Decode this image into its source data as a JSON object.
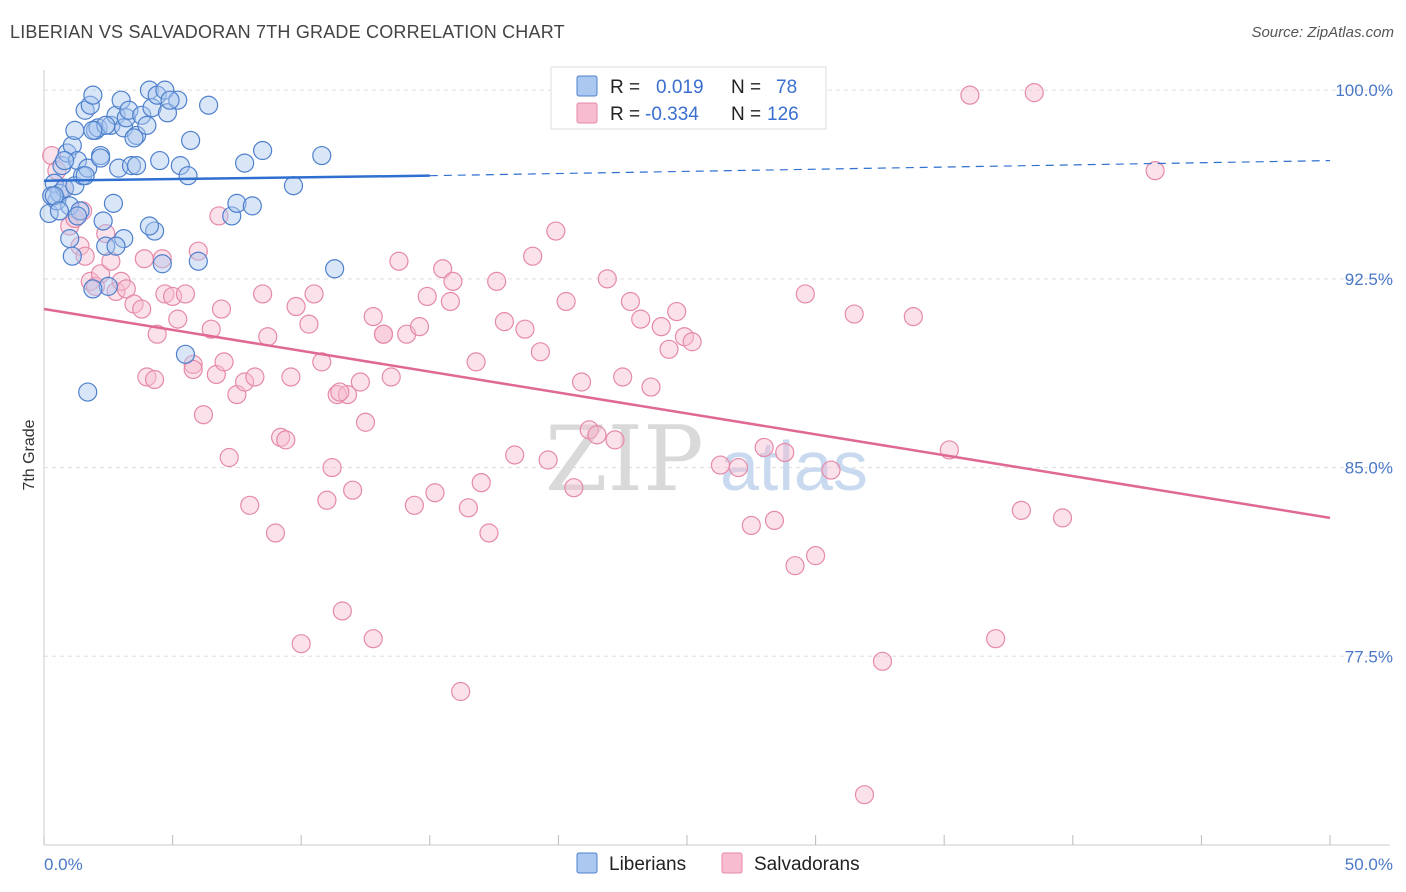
{
  "header": {
    "title": "LIBERIAN VS SALVADORAN 7TH GRADE CORRELATION CHART",
    "source": "Source: ZipAtlas.com"
  },
  "watermark": {
    "part1": "ZIP",
    "part2": "atlas"
  },
  "colors": {
    "liberians_fill": "#aac8f0",
    "liberians_stroke": "#4f80cc",
    "liberians_line": "#2f6fd0",
    "salvadorans_fill": "#f7bcd0",
    "salvadorans_stroke": "#e58aa8",
    "salvadorans_line": "#e06894",
    "grid": "#dddddd"
  },
  "legend": {
    "rows": [
      {
        "r_label": "R =",
        "r_value": "0.019",
        "n_label": "N =",
        "n_value": "78"
      },
      {
        "r_label": "R =",
        "r_value": "-0.334",
        "n_label": "N =",
        "n_value": "126"
      }
    ]
  },
  "chart_data": {
    "type": "scatter",
    "xlabel": "",
    "ylabel": "7th Grade",
    "xlim": [
      0,
      50
    ],
    "ylim": [
      70,
      100.8
    ],
    "x_tick_labels": [
      "0.0%",
      "50.0%"
    ],
    "y_ticks": [
      {
        "value": 100.0,
        "label": "100.0%"
      },
      {
        "value": 92.5,
        "label": "92.5%"
      },
      {
        "value": 85.0,
        "label": "85.0%"
      },
      {
        "value": 77.5,
        "label": "77.5%"
      }
    ],
    "grid": true,
    "legend_position": "top-center",
    "series": [
      {
        "name": "Liberians",
        "trend": {
          "x_start": 0,
          "y_start": 96.4,
          "x_solid_end": 15,
          "y_solid_end": 96.6,
          "x_end": 50,
          "y_end": 97.2
        },
        "points": [
          [
            0.2,
            95.1
          ],
          [
            0.4,
            96.3
          ],
          [
            0.5,
            95.6
          ],
          [
            0.6,
            95.9
          ],
          [
            0.7,
            97.0
          ],
          [
            0.8,
            96.1
          ],
          [
            0.9,
            97.5
          ],
          [
            1.0,
            95.4
          ],
          [
            1.1,
            97.8
          ],
          [
            1.2,
            96.2
          ],
          [
            1.3,
            97.2
          ],
          [
            1.4,
            95.2
          ],
          [
            1.5,
            96.6
          ],
          [
            1.6,
            99.2
          ],
          [
            1.7,
            96.9
          ],
          [
            1.8,
            99.4
          ],
          [
            1.9,
            99.8
          ],
          [
            2.0,
            98.4
          ],
          [
            2.1,
            98.5
          ],
          [
            2.2,
            97.4
          ],
          [
            2.3,
            94.8
          ],
          [
            2.4,
            93.8
          ],
          [
            2.5,
            92.2
          ],
          [
            2.6,
            98.6
          ],
          [
            2.7,
            95.5
          ],
          [
            2.8,
            99.0
          ],
          [
            2.9,
            96.9
          ],
          [
            3.0,
            99.6
          ],
          [
            3.1,
            98.5
          ],
          [
            3.2,
            98.9
          ],
          [
            3.3,
            99.2
          ],
          [
            3.4,
            97.0
          ],
          [
            3.6,
            98.2
          ],
          [
            3.8,
            99.0
          ],
          [
            4.0,
            98.6
          ],
          [
            4.1,
            100.0
          ],
          [
            4.2,
            99.3
          ],
          [
            4.3,
            94.4
          ],
          [
            4.4,
            99.8
          ],
          [
            4.5,
            97.2
          ],
          [
            4.6,
            93.1
          ],
          [
            4.7,
            100.0
          ],
          [
            4.8,
            99.1
          ],
          [
            5.2,
            99.6
          ],
          [
            5.3,
            97.0
          ],
          [
            5.5,
            89.5
          ],
          [
            5.6,
            96.6
          ],
          [
            5.7,
            98.0
          ],
          [
            6.0,
            93.2
          ],
          [
            6.4,
            99.4
          ],
          [
            7.3,
            95.0
          ],
          [
            7.5,
            95.5
          ],
          [
            7.8,
            97.1
          ],
          [
            8.1,
            95.4
          ],
          [
            8.5,
            97.6
          ],
          [
            9.7,
            96.2
          ],
          [
            10.8,
            97.4
          ],
          [
            11.3,
            92.9
          ],
          [
            0.3,
            95.8
          ],
          [
            0.8,
            97.2
          ],
          [
            1.0,
            94.1
          ],
          [
            1.2,
            98.4
          ],
          [
            1.6,
            96.6
          ],
          [
            1.9,
            92.1
          ],
          [
            2.4,
            98.6
          ],
          [
            3.1,
            94.1
          ],
          [
            3.5,
            98.1
          ],
          [
            4.9,
            99.6
          ],
          [
            1.1,
            93.4
          ],
          [
            1.9,
            98.4
          ],
          [
            0.4,
            95.8
          ],
          [
            0.6,
            95.2
          ],
          [
            1.7,
            88.0
          ],
          [
            2.8,
            93.8
          ],
          [
            3.6,
            97.0
          ],
          [
            4.1,
            94.6
          ],
          [
            2.2,
            97.3
          ],
          [
            1.3,
            95.0
          ]
        ]
      },
      {
        "name": "Salvadorans",
        "trend": {
          "x_start": 0,
          "y_start": 91.3,
          "x_end": 50,
          "y_end": 83.0
        },
        "points": [
          [
            0.3,
            97.4
          ],
          [
            0.5,
            96.8
          ],
          [
            1.0,
            94.6
          ],
          [
            1.2,
            94.9
          ],
          [
            1.4,
            93.8
          ],
          [
            1.6,
            93.4
          ],
          [
            1.8,
            92.4
          ],
          [
            2.0,
            92.2
          ],
          [
            2.2,
            92.7
          ],
          [
            2.6,
            93.2
          ],
          [
            2.8,
            92.0
          ],
          [
            3.0,
            92.4
          ],
          [
            3.2,
            92.1
          ],
          [
            3.5,
            91.5
          ],
          [
            3.8,
            91.3
          ],
          [
            4.0,
            88.6
          ],
          [
            4.4,
            90.3
          ],
          [
            4.6,
            93.3
          ],
          [
            4.7,
            91.9
          ],
          [
            5.0,
            91.8
          ],
          [
            5.2,
            90.9
          ],
          [
            5.5,
            91.9
          ],
          [
            5.8,
            89.1
          ],
          [
            6.0,
            93.6
          ],
          [
            6.2,
            87.1
          ],
          [
            6.5,
            90.5
          ],
          [
            6.7,
            88.7
          ],
          [
            6.9,
            91.3
          ],
          [
            7.0,
            89.2
          ],
          [
            7.2,
            85.4
          ],
          [
            7.5,
            87.9
          ],
          [
            7.8,
            88.4
          ],
          [
            8.0,
            83.5
          ],
          [
            8.2,
            88.6
          ],
          [
            8.5,
            91.9
          ],
          [
            8.7,
            90.2
          ],
          [
            9.0,
            82.4
          ],
          [
            9.2,
            86.2
          ],
          [
            9.4,
            86.1
          ],
          [
            9.6,
            88.6
          ],
          [
            9.8,
            91.4
          ],
          [
            10.0,
            78.0
          ],
          [
            10.3,
            90.7
          ],
          [
            10.5,
            91.9
          ],
          [
            10.8,
            89.2
          ],
          [
            11.0,
            83.7
          ],
          [
            11.2,
            85.0
          ],
          [
            11.4,
            87.9
          ],
          [
            11.6,
            79.3
          ],
          [
            11.8,
            87.9
          ],
          [
            12.0,
            84.1
          ],
          [
            12.3,
            88.4
          ],
          [
            12.5,
            86.8
          ],
          [
            12.8,
            78.2
          ],
          [
            13.2,
            90.3
          ],
          [
            13.5,
            88.6
          ],
          [
            13.8,
            93.2
          ],
          [
            14.1,
            90.3
          ],
          [
            14.4,
            83.5
          ],
          [
            14.6,
            90.6
          ],
          [
            14.9,
            91.8
          ],
          [
            15.2,
            84.0
          ],
          [
            15.5,
            92.9
          ],
          [
            15.9,
            92.4
          ],
          [
            16.2,
            76.1
          ],
          [
            16.5,
            83.4
          ],
          [
            16.8,
            89.2
          ],
          [
            17.0,
            84.4
          ],
          [
            17.3,
            82.4
          ],
          [
            17.6,
            92.4
          ],
          [
            17.9,
            90.8
          ],
          [
            18.3,
            85.5
          ],
          [
            18.7,
            90.5
          ],
          [
            19.0,
            93.4
          ],
          [
            19.3,
            89.6
          ],
          [
            19.6,
            85.3
          ],
          [
            19.9,
            94.4
          ],
          [
            20.3,
            91.6
          ],
          [
            20.6,
            84.2
          ],
          [
            20.9,
            88.4
          ],
          [
            21.2,
            86.5
          ],
          [
            21.5,
            86.3
          ],
          [
            21.9,
            92.5
          ],
          [
            22.2,
            86.1
          ],
          [
            22.5,
            88.6
          ],
          [
            22.8,
            91.6
          ],
          [
            23.2,
            90.9
          ],
          [
            23.6,
            88.2
          ],
          [
            24.0,
            90.6
          ],
          [
            24.3,
            89.7
          ],
          [
            24.6,
            91.2
          ],
          [
            24.9,
            90.2
          ],
          [
            25.2,
            90.0
          ],
          [
            26.0,
            99.8
          ],
          [
            26.3,
            85.1
          ],
          [
            27.0,
            85.0
          ],
          [
            27.5,
            82.7
          ],
          [
            28.0,
            85.8
          ],
          [
            28.4,
            82.9
          ],
          [
            28.8,
            85.6
          ],
          [
            29.2,
            81.1
          ],
          [
            29.6,
            91.9
          ],
          [
            30.0,
            81.5
          ],
          [
            30.6,
            84.9
          ],
          [
            31.5,
            91.1
          ],
          [
            31.9,
            72.0
          ],
          [
            32.6,
            77.3
          ],
          [
            33.8,
            91.0
          ],
          [
            35.2,
            85.7
          ],
          [
            36.0,
            99.8
          ],
          [
            37.0,
            78.2
          ],
          [
            38.0,
            83.3
          ],
          [
            38.5,
            99.9
          ],
          [
            39.6,
            83.0
          ],
          [
            43.2,
            96.8
          ],
          [
            4.3,
            88.5
          ],
          [
            2.4,
            94.3
          ],
          [
            5.8,
            88.9
          ],
          [
            13.2,
            90.3
          ],
          [
            15.8,
            91.6
          ],
          [
            1.5,
            95.2
          ],
          [
            0.8,
            96.1
          ],
          [
            3.9,
            93.3
          ],
          [
            12.8,
            91.0
          ],
          [
            6.8,
            95.0
          ],
          [
            11.5,
            88.0
          ]
        ]
      }
    ]
  }
}
